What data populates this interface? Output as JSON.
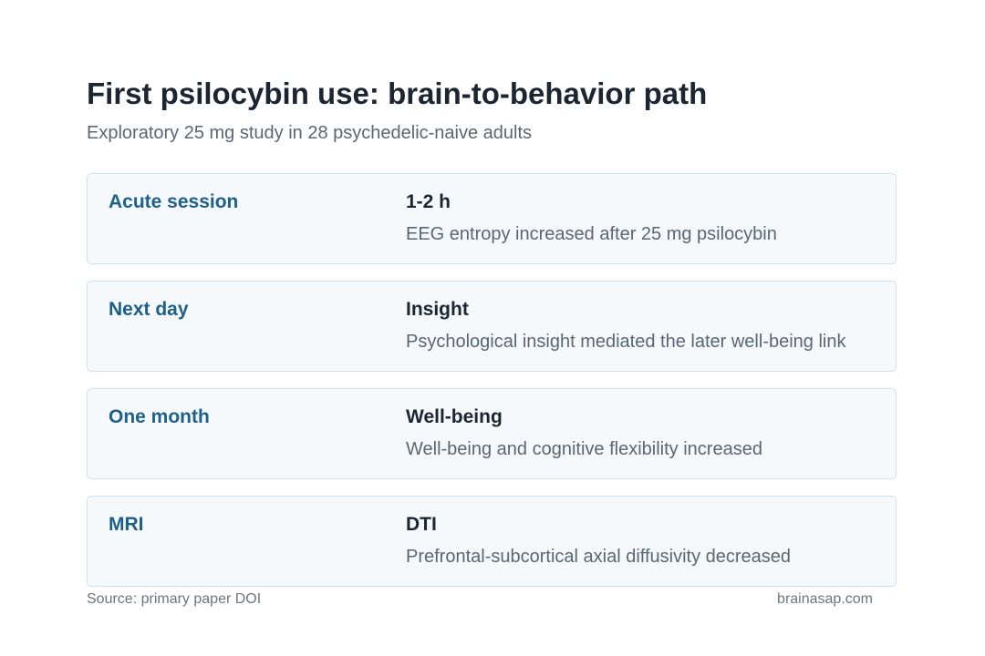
{
  "header": {
    "title": "First psilocybin use: brain-to-behavior path",
    "subtitle": "Exploratory 25 mg study in 28 psychedelic-naive adults"
  },
  "rows": [
    {
      "stage": "Acute session",
      "metric": "1-2 h",
      "description": "EEG entropy increased after 25 mg psilocybin"
    },
    {
      "stage": "Next day",
      "metric": "Insight",
      "description": "Psychological insight mediated the later well-being link"
    },
    {
      "stage": "One month",
      "metric": "Well-being",
      "description": "Well-being and cognitive flexibility increased"
    },
    {
      "stage": "MRI",
      "metric": "DTI",
      "description": "Prefrontal-subcortical axial diffusivity decreased"
    }
  ],
  "footer": {
    "source": "Source: primary paper DOI",
    "site": "brainasap.com"
  },
  "colors": {
    "stage_label": "#1f5f8b",
    "card_background": "#f5f9fc",
    "card_border": "#cfe2ee"
  }
}
